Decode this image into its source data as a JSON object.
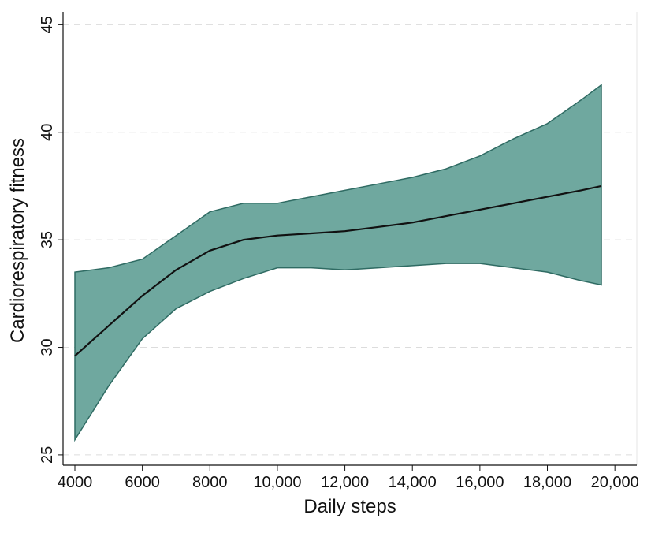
{
  "chart_data": {
    "type": "line-band",
    "x_label": "Daily steps",
    "y_label": "Cardiorespiratory fitness",
    "x": [
      4000,
      5000,
      6000,
      7000,
      8000,
      9000,
      10000,
      11000,
      12000,
      13000,
      14000,
      15000,
      16000,
      17000,
      18000,
      19000,
      19600
    ],
    "values": [
      29.6,
      31.0,
      32.4,
      33.6,
      34.5,
      35.0,
      35.2,
      35.3,
      35.4,
      35.6,
      35.8,
      36.1,
      36.4,
      36.7,
      37.0,
      37.3,
      37.5
    ],
    "upper": [
      33.5,
      33.7,
      34.1,
      35.2,
      36.3,
      36.7,
      36.7,
      37.0,
      37.3,
      37.6,
      37.9,
      38.3,
      38.9,
      39.7,
      40.4,
      41.5,
      42.2
    ],
    "lower": [
      25.7,
      28.2,
      30.4,
      31.8,
      32.6,
      33.2,
      33.7,
      33.7,
      33.6,
      33.7,
      33.8,
      33.9,
      33.9,
      33.7,
      33.5,
      33.1,
      32.9
    ],
    "color": "#111111",
    "band_color": "#6fa89f",
    "band_edge_color": "#2f6b63",
    "xlim": [
      3650,
      20650
    ],
    "ylim": [
      24.52,
      45.6
    ],
    "xticks": [
      4000,
      6000,
      8000,
      {
        "value": 10000,
        "label": "10,000"
      },
      {
        "value": 12000,
        "label": "12,000"
      },
      {
        "value": 14000,
        "label": "14,000"
      },
      {
        "value": 16000,
        "label": "16,000"
      },
      {
        "value": 18000,
        "label": "18,000"
      },
      {
        "value": 20000,
        "label": "20,000"
      }
    ],
    "yticks": [
      25,
      30,
      35,
      40,
      45
    ],
    "grid": true
  }
}
